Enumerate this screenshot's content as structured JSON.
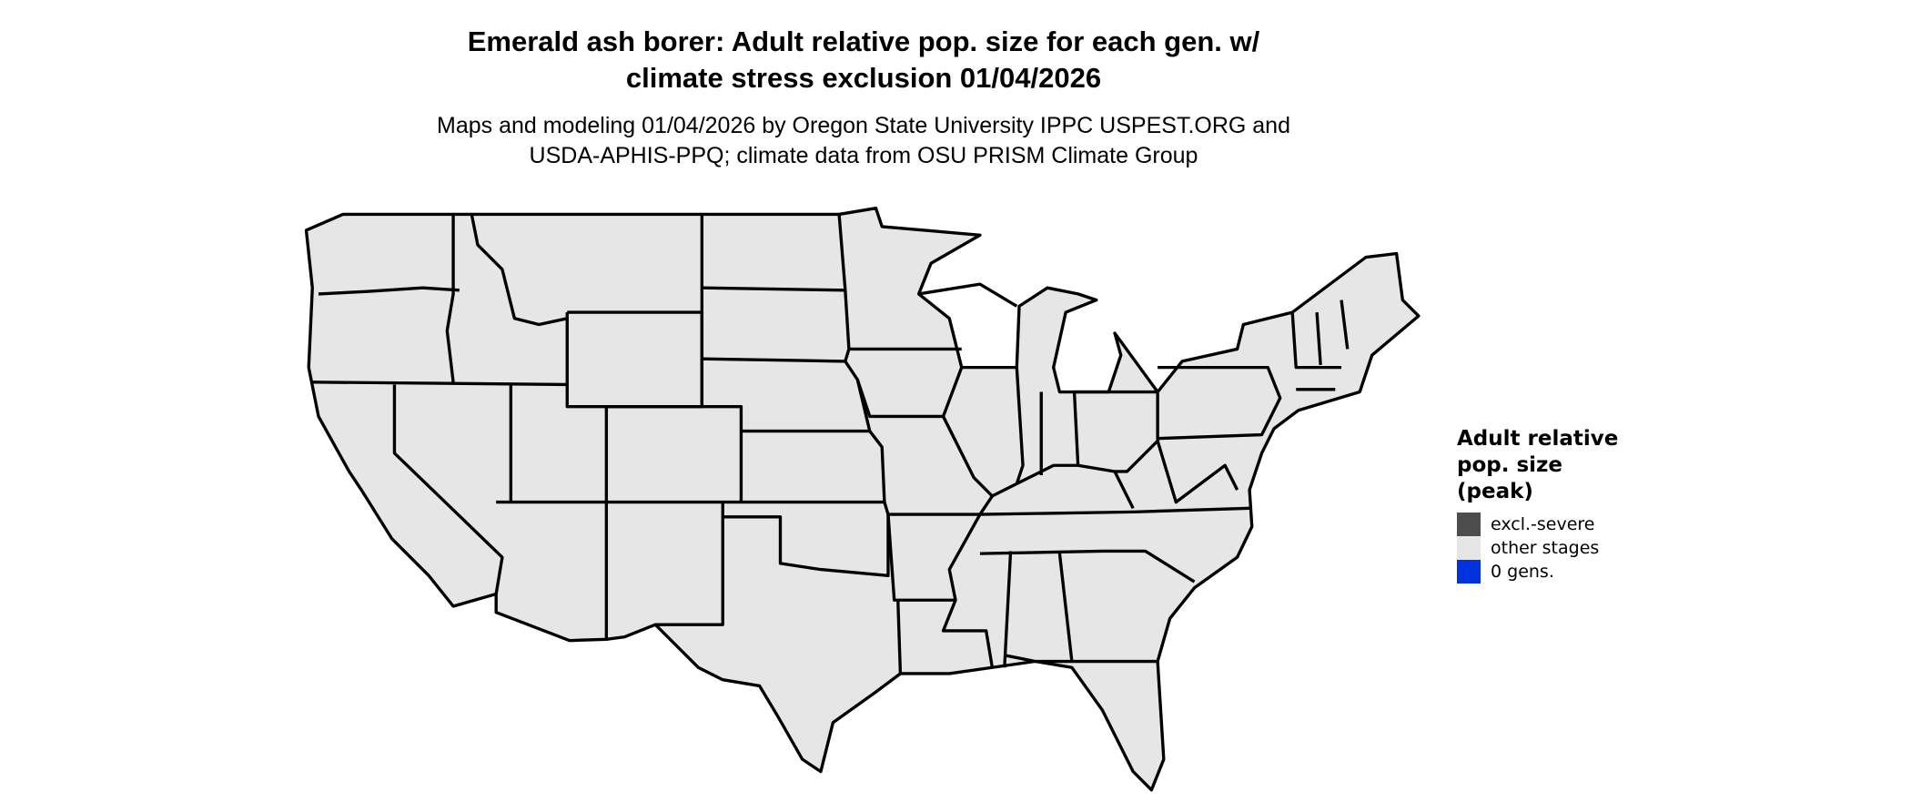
{
  "title": "Emerald ash borer: Adult relative pop. size for each gen. w/ climate stress exclusion 01/04/2026",
  "title_lines": [
    "Emerald ash borer: Adult relative pop. size for each gen. w/",
    "climate stress exclusion 01/04/2026"
  ],
  "subtitle_lines": [
    "Maps and modeling 01/04/2026 by Oregon State University IPPC USPEST.ORG and",
    "USDA-APHIS-PPQ; climate data from OSU PRISM Climate Group"
  ],
  "map": {
    "region": "Contiguous United States",
    "fill_color": "#e6e6e6",
    "border_color": "#000000"
  },
  "legend": {
    "title_lines": [
      "Adult relative",
      "pop. size",
      "(peak)"
    ],
    "items": [
      {
        "label": "excl.-severe",
        "color": "#4d4d4d"
      },
      {
        "label": "other stages",
        "color": "#e6e6e6"
      },
      {
        "label": "0 gens.",
        "color": "#0033dd"
      }
    ]
  }
}
